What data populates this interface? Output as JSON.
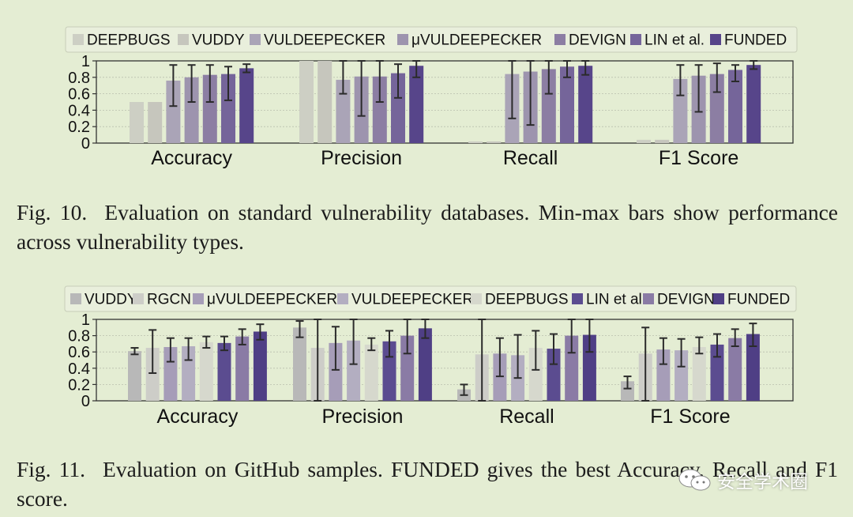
{
  "chart_data": [
    {
      "type": "bar",
      "title": "",
      "xlabel": "",
      "ylabel": "",
      "ylim": [
        0,
        1
      ],
      "yticks": [
        "0",
        "0.2",
        "0.4",
        "0.6",
        "0.8",
        "1"
      ],
      "categories": [
        "Accuracy",
        "Precision",
        "Recall",
        "F1 Score"
      ],
      "legend_position": "top",
      "series": [
        {
          "name": "DEEPBUGS",
          "color": "#cdcfc4",
          "values": [
            0.5,
            1.0,
            0.02,
            0.04
          ],
          "min": [
            0.5,
            1.0,
            0.02,
            0.04
          ],
          "max": [
            0.5,
            1.0,
            0.02,
            0.04
          ]
        },
        {
          "name": "VUDDY",
          "color": "#c6c6bd",
          "values": [
            0.5,
            1.0,
            0.02,
            0.04
          ],
          "min": [
            0.5,
            1.0,
            0.02,
            0.04
          ],
          "max": [
            0.5,
            1.0,
            0.02,
            0.04
          ]
        },
        {
          "name": "VULDEEPECKER",
          "color": "#aaa4b7",
          "values": [
            0.76,
            0.77,
            0.84,
            0.78
          ],
          "min": [
            0.45,
            0.6,
            0.3,
            0.58
          ],
          "max": [
            0.95,
            1.0,
            1.0,
            0.95
          ]
        },
        {
          "name": "μVULDEEPECKER",
          "color": "#9d94ae",
          "values": [
            0.8,
            0.81,
            0.87,
            0.82
          ],
          "min": [
            0.5,
            0.33,
            0.22,
            0.38
          ],
          "max": [
            0.95,
            1.0,
            1.0,
            0.95
          ]
        },
        {
          "name": "DEVIGN",
          "color": "#8c7ea3",
          "values": [
            0.83,
            0.81,
            0.9,
            0.84
          ],
          "min": [
            0.5,
            0.5,
            0.6,
            0.62
          ],
          "max": [
            0.95,
            1.0,
            1.0,
            0.97
          ]
        },
        {
          "name": "LIN et al.",
          "color": "#75659a",
          "values": [
            0.84,
            0.85,
            0.93,
            0.89
          ],
          "min": [
            0.52,
            0.55,
            0.8,
            0.75
          ],
          "max": [
            0.93,
            0.96,
            1.0,
            0.95
          ]
        },
        {
          "name": "FUNDED",
          "color": "#57458a",
          "values": [
            0.91,
            0.94,
            0.94,
            0.95
          ],
          "min": [
            0.86,
            0.8,
            0.83,
            0.9
          ],
          "max": [
            0.96,
            1.0,
            1.0,
            1.0
          ]
        }
      ]
    },
    {
      "type": "bar",
      "title": "",
      "xlabel": "",
      "ylabel": "",
      "ylim": [
        0,
        1
      ],
      "yticks": [
        "0",
        "0.2",
        "0.4",
        "0.6",
        "0.8",
        "1"
      ],
      "categories": [
        "Accuracy",
        "Precision",
        "Recall",
        "F1 Score"
      ],
      "legend_position": "top",
      "series": [
        {
          "name": "VUDDY",
          "color": "#b8b8b8",
          "values": [
            0.61,
            0.9,
            0.14,
            0.24
          ],
          "min": [
            0.57,
            0.78,
            0.07,
            0.15
          ],
          "max": [
            0.65,
            0.98,
            0.2,
            0.3
          ]
        },
        {
          "name": "RGCN",
          "color": "#cdcdc8",
          "values": [
            0.65,
            0.65,
            0.57,
            0.58
          ],
          "min": [
            0.34,
            0.0,
            0.0,
            0.0
          ],
          "max": [
            0.87,
            1.0,
            1.0,
            0.9
          ]
        },
        {
          "name": "μVULDEEPECKER",
          "color": "#a69db8",
          "values": [
            0.66,
            0.71,
            0.58,
            0.63
          ],
          "min": [
            0.48,
            0.38,
            0.3,
            0.45
          ],
          "max": [
            0.77,
            0.91,
            0.77,
            0.77
          ]
        },
        {
          "name": "VULDEEPECKER",
          "color": "#b3aec1",
          "values": [
            0.67,
            0.74,
            0.56,
            0.62
          ],
          "min": [
            0.5,
            0.45,
            0.28,
            0.42
          ],
          "max": [
            0.77,
            1.0,
            0.81,
            0.76
          ]
        },
        {
          "name": "DEEPBUGS",
          "color": "#d6d8cd",
          "values": [
            0.72,
            0.69,
            0.65,
            0.66
          ],
          "min": [
            0.65,
            0.62,
            0.38,
            0.58
          ],
          "max": [
            0.79,
            0.77,
            0.86,
            0.78
          ]
        },
        {
          "name": "LIN et al.",
          "color": "#5b4c90",
          "values": [
            0.71,
            0.73,
            0.64,
            0.69
          ],
          "min": [
            0.62,
            0.54,
            0.45,
            0.54
          ],
          "max": [
            0.79,
            0.86,
            0.82,
            0.82
          ]
        },
        {
          "name": "DEVIGN",
          "color": "#8a7ba5",
          "values": [
            0.79,
            0.8,
            0.8,
            0.77
          ],
          "min": [
            0.69,
            0.58,
            0.59,
            0.67
          ],
          "max": [
            0.88,
            1.0,
            1.0,
            0.88
          ]
        },
        {
          "name": "FUNDED",
          "color": "#4f3f85",
          "values": [
            0.85,
            0.89,
            0.81,
            0.82
          ],
          "min": [
            0.75,
            0.77,
            0.6,
            0.67
          ],
          "max": [
            0.94,
            1.0,
            1.0,
            0.95
          ]
        }
      ]
    }
  ],
  "captions": {
    "fig10": {
      "label": "Fig. 10.",
      "text": "Evaluation on standard vulnerability databases. Min-max bars show performance across vulnerability types."
    },
    "fig11": {
      "label": "Fig. 11.",
      "pre": "Evaluation on GitHub samples. ",
      "sc_first": "F",
      "sc_rest": "UNDED",
      "post": " gives the best Accuracy, Recall and F1 score."
    }
  },
  "watermark": {
    "text": "安全学术圈",
    "icon": "wechat-icon"
  }
}
